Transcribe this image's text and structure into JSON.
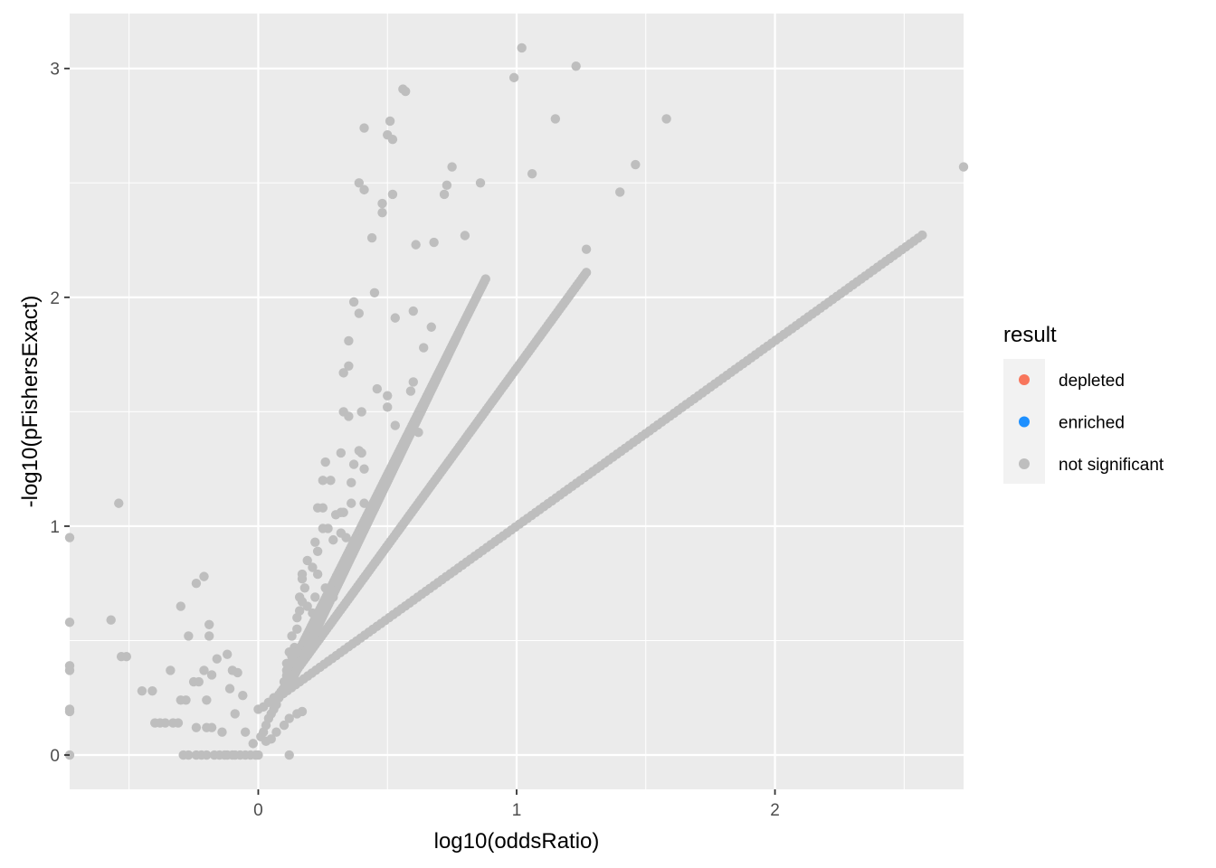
{
  "chart_data": {
    "type": "scatter",
    "xlabel": "log10(oddsRatio)",
    "ylabel": "-log10(pFishersExact)",
    "xlim": [
      -0.73,
      2.73
    ],
    "ylim": [
      -0.15,
      3.24
    ],
    "x_ticks": [
      0,
      1,
      2
    ],
    "x_tick_labels": [
      "0",
      "1",
      "2"
    ],
    "x_minor_ticks": [
      -0.5,
      0.5,
      1.5,
      2.5
    ],
    "y_ticks": [
      0,
      1,
      2,
      3
    ],
    "y_tick_labels": [
      "0",
      "1",
      "2",
      "3"
    ],
    "y_minor_ticks": [
      0.5,
      1.5,
      2.5
    ],
    "grid": true,
    "legend": {
      "title": "result",
      "position": "right",
      "entries": [
        {
          "label": "depleted",
          "color": "#F8765C"
        },
        {
          "label": "enriched",
          "color": "#1E90FF"
        },
        {
          "label": "not significant",
          "color": "#BEBEBE"
        }
      ]
    },
    "series": [
      {
        "name": "not significant",
        "color": "#BEBEBE",
        "points": [
          [
            -0.73,
            0.95
          ],
          [
            -0.73,
            0.58
          ],
          [
            -0.73,
            0.39
          ],
          [
            -0.73,
            0.37
          ],
          [
            -0.73,
            0.2
          ],
          [
            -0.73,
            0.19
          ],
          [
            -0.73,
            0.0
          ],
          [
            -0.57,
            0.59
          ],
          [
            -0.54,
            1.1
          ],
          [
            -0.53,
            0.43
          ],
          [
            -0.51,
            0.43
          ],
          [
            -0.45,
            0.28
          ],
          [
            -0.41,
            0.28
          ],
          [
            -0.4,
            0.14
          ],
          [
            -0.38,
            0.14
          ],
          [
            -0.36,
            0.14
          ],
          [
            -0.34,
            0.37
          ],
          [
            -0.33,
            0.14
          ],
          [
            -0.31,
            0.14
          ],
          [
            -0.3,
            0.65
          ],
          [
            -0.3,
            0.24
          ],
          [
            -0.29,
            0.0
          ],
          [
            -0.28,
            0.24
          ],
          [
            -0.27,
            0.0
          ],
          [
            -0.27,
            0.52
          ],
          [
            -0.25,
            0.32
          ],
          [
            -0.24,
            0.75
          ],
          [
            -0.24,
            0.12
          ],
          [
            -0.24,
            0.0
          ],
          [
            -0.23,
            0.32
          ],
          [
            -0.22,
            0.0
          ],
          [
            -0.21,
            0.78
          ],
          [
            -0.21,
            0.37
          ],
          [
            -0.2,
            0.12
          ],
          [
            -0.2,
            0.0
          ],
          [
            -0.2,
            0.24
          ],
          [
            -0.19,
            0.57
          ],
          [
            -0.19,
            0.52
          ],
          [
            -0.18,
            0.35
          ],
          [
            -0.18,
            0.12
          ],
          [
            -0.17,
            0.0
          ],
          [
            -0.16,
            0.42
          ],
          [
            -0.15,
            0.0
          ],
          [
            -0.14,
            0.1
          ],
          [
            -0.13,
            0.0
          ],
          [
            -0.12,
            0.44
          ],
          [
            -0.12,
            0.0
          ],
          [
            -0.11,
            0.29
          ],
          [
            -0.1,
            0.37
          ],
          [
            -0.1,
            0.0
          ],
          [
            -0.09,
            0.0
          ],
          [
            -0.09,
            0.18
          ],
          [
            -0.08,
            0.36
          ],
          [
            -0.07,
            0.0
          ],
          [
            -0.06,
            0.26
          ],
          [
            -0.05,
            0.1
          ],
          [
            -0.05,
            0.0
          ],
          [
            -0.03,
            0.0
          ],
          [
            -0.02,
            0.05
          ],
          [
            -0.01,
            0.0
          ],
          [
            0.0,
            0.0
          ],
          [
            0.12,
            0.0
          ],
          [
            0.41,
            2.74
          ],
          [
            0.5,
            2.71
          ],
          [
            0.52,
            2.69
          ],
          [
            0.51,
            2.77
          ],
          [
            0.56,
            2.91
          ],
          [
            0.57,
            2.9
          ],
          [
            0.99,
            2.96
          ],
          [
            1.02,
            3.09
          ],
          [
            1.23,
            3.01
          ],
          [
            1.15,
            2.78
          ],
          [
            1.58,
            2.78
          ],
          [
            2.73,
            2.57
          ],
          [
            1.46,
            2.58
          ],
          [
            1.4,
            2.46
          ],
          [
            1.27,
            2.21
          ],
          [
            1.06,
            2.54
          ],
          [
            0.8,
            2.27
          ],
          [
            0.86,
            2.5
          ],
          [
            0.75,
            2.57
          ],
          [
            0.73,
            2.49
          ],
          [
            0.72,
            2.45
          ],
          [
            0.68,
            2.24
          ],
          [
            0.61,
            2.23
          ],
          [
            0.52,
            2.45
          ],
          [
            0.48,
            2.37
          ],
          [
            0.48,
            2.41
          ],
          [
            0.39,
            2.5
          ],
          [
            0.41,
            2.47
          ],
          [
            0.44,
            2.26
          ],
          [
            0.45,
            2.02
          ],
          [
            0.37,
            1.98
          ],
          [
            0.39,
            1.93
          ],
          [
            0.35,
            1.81
          ],
          [
            0.53,
            1.91
          ],
          [
            0.6,
            1.94
          ],
          [
            0.64,
            1.78
          ],
          [
            0.67,
            1.87
          ],
          [
            0.35,
            1.7
          ],
          [
            0.33,
            1.67
          ],
          [
            0.46,
            1.6
          ],
          [
            0.5,
            1.52
          ],
          [
            0.5,
            1.57
          ],
          [
            0.53,
            1.44
          ],
          [
            0.6,
            1.63
          ],
          [
            0.59,
            1.59
          ],
          [
            0.62,
            1.41
          ],
          [
            0.33,
            1.5
          ],
          [
            0.35,
            1.48
          ],
          [
            0.4,
            1.5
          ],
          [
            0.37,
            1.27
          ],
          [
            0.32,
            1.32
          ],
          [
            0.39,
            1.33
          ],
          [
            0.4,
            1.32
          ],
          [
            0.41,
            1.25
          ],
          [
            0.26,
            1.28
          ],
          [
            0.28,
            1.2
          ],
          [
            0.25,
            1.2
          ],
          [
            0.36,
            1.19
          ],
          [
            0.41,
            1.1
          ],
          [
            0.36,
            1.1
          ],
          [
            0.33,
            1.06
          ],
          [
            0.32,
            1.06
          ],
          [
            0.3,
            1.05
          ],
          [
            0.25,
            1.08
          ],
          [
            0.23,
            1.08
          ],
          [
            0.43,
            1.06
          ],
          [
            0.27,
            0.99
          ],
          [
            0.25,
            0.99
          ],
          [
            0.32,
            0.97
          ],
          [
            0.29,
            0.94
          ],
          [
            0.34,
            0.95
          ],
          [
            0.22,
            0.93
          ],
          [
            0.23,
            0.89
          ],
          [
            0.19,
            0.85
          ],
          [
            0.21,
            0.82
          ],
          [
            0.17,
            0.79
          ],
          [
            0.17,
            0.77
          ],
          [
            0.23,
            0.79
          ],
          [
            0.26,
            0.73
          ],
          [
            0.29,
            0.69
          ],
          [
            0.18,
            0.73
          ],
          [
            0.16,
            0.69
          ],
          [
            0.17,
            0.67
          ],
          [
            0.22,
            0.69
          ],
          [
            0.19,
            0.65
          ],
          [
            0.24,
            0.61
          ],
          [
            0.21,
            0.62
          ],
          [
            0.16,
            0.63
          ],
          [
            0.15,
            0.6
          ],
          [
            0.15,
            0.55
          ],
          [
            0.13,
            0.52
          ],
          [
            0.14,
            0.47
          ],
          [
            0.12,
            0.45
          ],
          [
            0.13,
            0.43
          ],
          [
            0.11,
            0.4
          ],
          [
            0.11,
            0.37
          ],
          [
            0.12,
            0.34
          ],
          [
            0.1,
            0.32
          ],
          [
            0.11,
            0.29
          ],
          [
            0.09,
            0.27
          ],
          [
            0.08,
            0.25
          ],
          [
            0.07,
            0.22
          ],
          [
            0.06,
            0.2
          ],
          [
            0.05,
            0.18
          ],
          [
            0.04,
            0.16
          ],
          [
            0.03,
            0.13
          ],
          [
            0.02,
            0.1
          ],
          [
            0.01,
            0.08
          ],
          [
            0.03,
            0.06
          ],
          [
            0.05,
            0.07
          ],
          [
            0.07,
            0.1
          ],
          [
            0.1,
            0.13
          ],
          [
            0.12,
            0.16
          ],
          [
            0.15,
            0.18
          ],
          [
            0.17,
            0.19
          ],
          [
            0.02,
            0.21
          ],
          [
            0.04,
            0.23
          ],
          [
            0.06,
            0.25
          ],
          [
            0.0,
            0.2
          ]
        ],
        "curves": [
          {
            "x_range": [
              0.05,
              2.57
            ],
            "equation": "y = 0.19 + 0.81*x"
          },
          {
            "x_range": [
              0.08,
              1.27
            ],
            "equation": "y = 0.14 + 1.55*x"
          },
          {
            "x_range": [
              0.11,
              0.88
            ],
            "equation": "y = 0.1 + 2.25*x"
          },
          {
            "x_range": [
              0.12,
              0.78
            ],
            "equation": "y = 0.02 + 2.35*x"
          }
        ]
      },
      {
        "name": "depleted",
        "color": "#F8765C",
        "points": []
      },
      {
        "name": "enriched",
        "color": "#1E90FF",
        "points": []
      }
    ]
  }
}
